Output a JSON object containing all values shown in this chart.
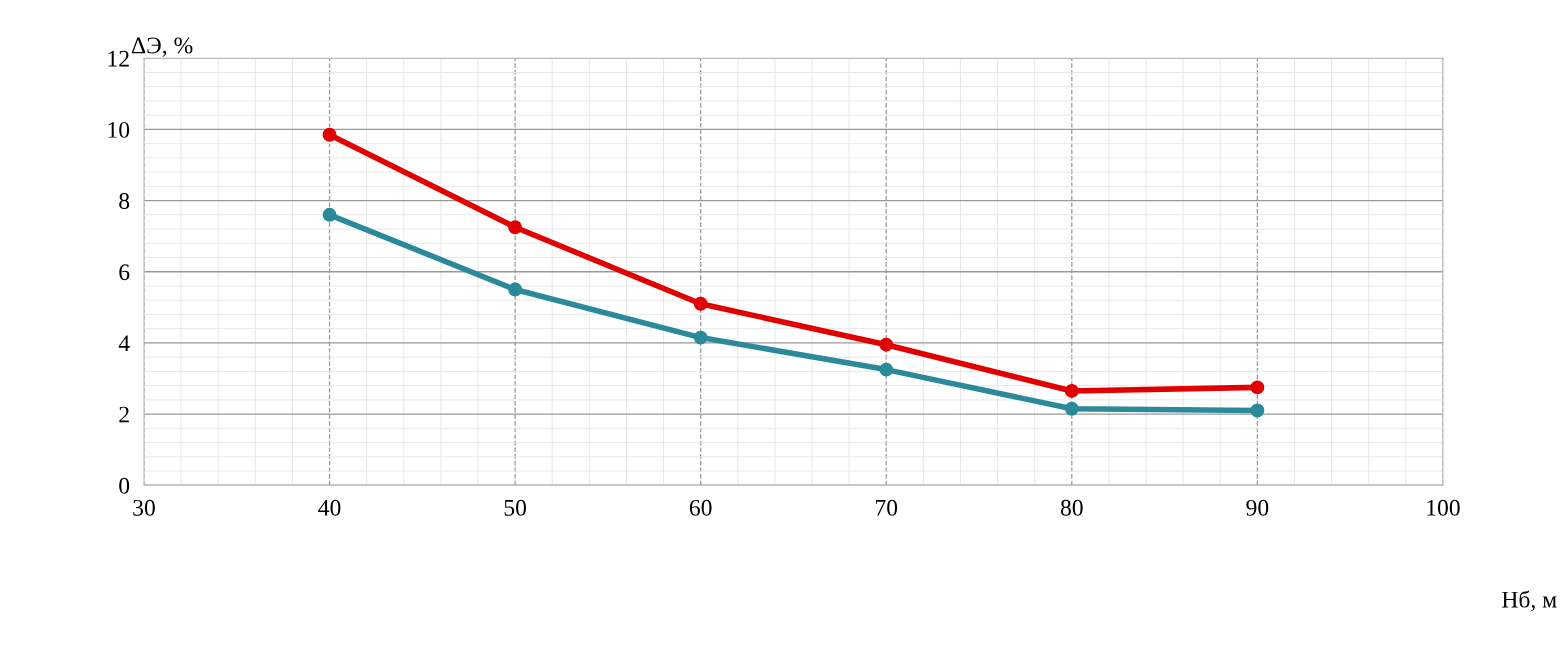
{
  "chart_data": {
    "type": "line",
    "xlabel": "Нб, м",
    "ylabel": "ΔЭ, %",
    "x": [
      40,
      50,
      60,
      70,
      80,
      90
    ],
    "series": [
      {
        "color": "#e00000",
        "values": [
          9.85,
          7.25,
          5.1,
          3.95,
          2.65,
          2.75
        ]
      },
      {
        "color": "#2a8a9a",
        "values": [
          7.6,
          5.5,
          4.15,
          3.25,
          2.15,
          2.1
        ]
      }
    ],
    "xlim": [
      30,
      100
    ],
    "xticks": [
      30,
      40,
      50,
      60,
      70,
      80,
      90,
      100
    ],
    "ylim": [
      0,
      12
    ],
    "yticks": [
      0,
      2,
      4,
      6,
      8,
      10,
      12
    ],
    "grid": true,
    "marker": "circle",
    "line_style": "solid"
  }
}
